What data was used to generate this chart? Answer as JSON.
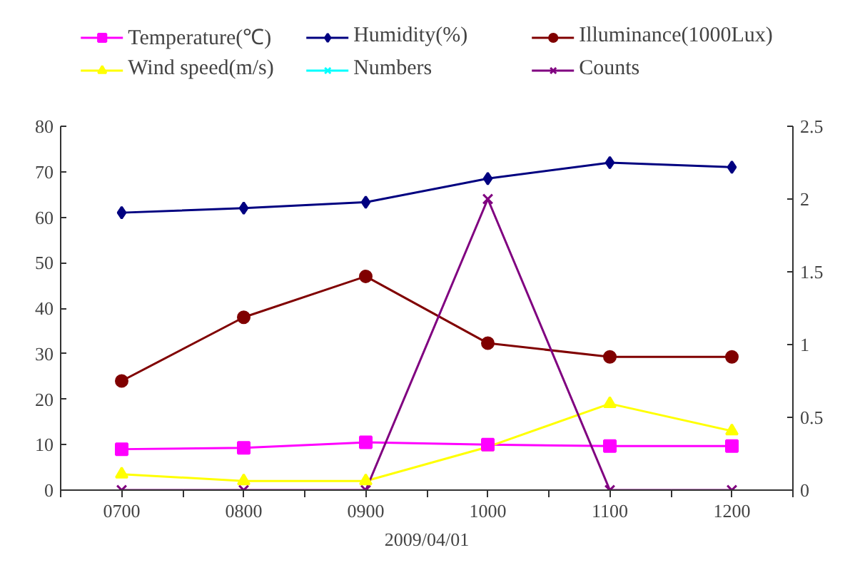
{
  "chart_data": {
    "type": "line",
    "xlabel": "2009/04/01",
    "categories": [
      "0700",
      "0800",
      "0900",
      "1000",
      "1100",
      "1200"
    ],
    "series": [
      {
        "name": "Temperature(℃)",
        "color": "#ff00ff",
        "marker": "square",
        "values": [
          9,
          9.3,
          10.5,
          10,
          9.7,
          9.7
        ]
      },
      {
        "name": "Humidity(%)",
        "color": "#000080",
        "marker": "diamond",
        "values": [
          61,
          62,
          63.3,
          68.5,
          72,
          71
        ]
      },
      {
        "name": "Illuminance(1000Lux)",
        "color": "#800000",
        "marker": "circle",
        "values": [
          24,
          38,
          47,
          32.3,
          29.3,
          29.3
        ]
      },
      {
        "name": "Wind speed(m/s)",
        "color": "#ffff00",
        "marker": "triangle",
        "values": [
          3.5,
          2,
          2,
          9.5,
          19,
          13
        ]
      },
      {
        "name": "Numbers",
        "color": "#00ffff",
        "marker": "cross",
        "axis": "y2",
        "values": [
          null,
          null,
          null,
          null,
          null,
          null
        ]
      },
      {
        "name": "Counts",
        "color": "#800080",
        "marker": "cross",
        "axis": "y2",
        "values": [
          0,
          0,
          0,
          2,
          0,
          0
        ]
      }
    ],
    "ylim": [
      0,
      80
    ],
    "yticks": [
      0,
      10,
      20,
      30,
      40,
      50,
      60,
      70,
      80
    ],
    "y2lim": [
      0,
      2.5
    ],
    "y2ticks": [
      0,
      {
        "value": 0.5,
        "label": "0.5"
      },
      1,
      {
        "value": 1.5,
        "label": "1.5"
      },
      2,
      {
        "value": 2.5,
        "label": "2.5"
      }
    ],
    "grid": false,
    "legend": "top"
  }
}
